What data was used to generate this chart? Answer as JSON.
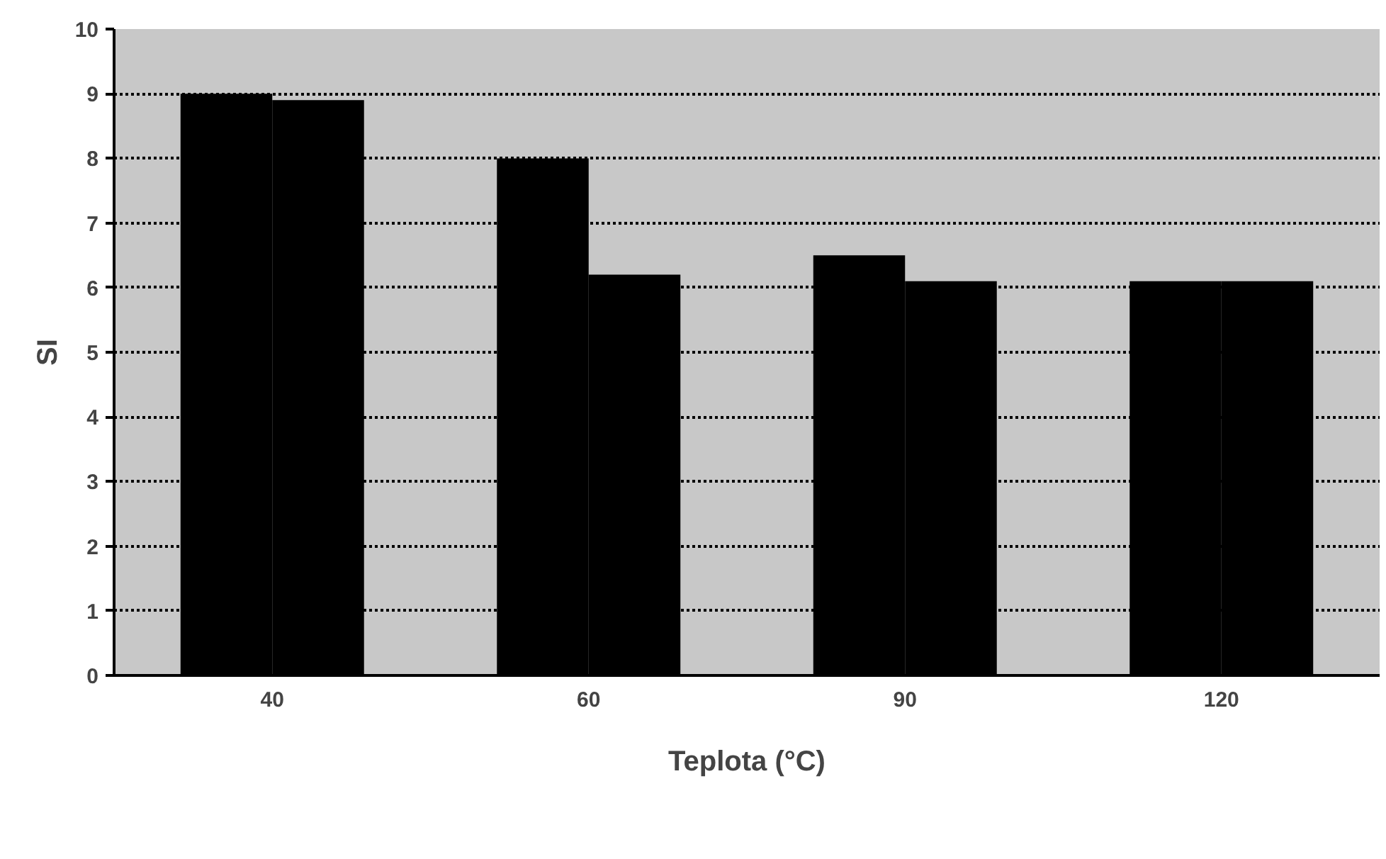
{
  "chart_data": {
    "type": "bar",
    "xlabel": "Teplota (°C)",
    "ylabel": "SI",
    "categories": [
      "40",
      "60",
      "90",
      "120"
    ],
    "series": [
      {
        "color": "#000000",
        "values": [
          9.0,
          8.0,
          6.5,
          6.1
        ]
      },
      {
        "color": "#000000",
        "values": [
          8.9,
          6.2,
          6.1,
          6.1
        ]
      }
    ],
    "ylim": [
      0,
      10
    ],
    "yticks": [
      0,
      1,
      2,
      3,
      4,
      5,
      6,
      7,
      8,
      9,
      10
    ],
    "grid": "y"
  }
}
